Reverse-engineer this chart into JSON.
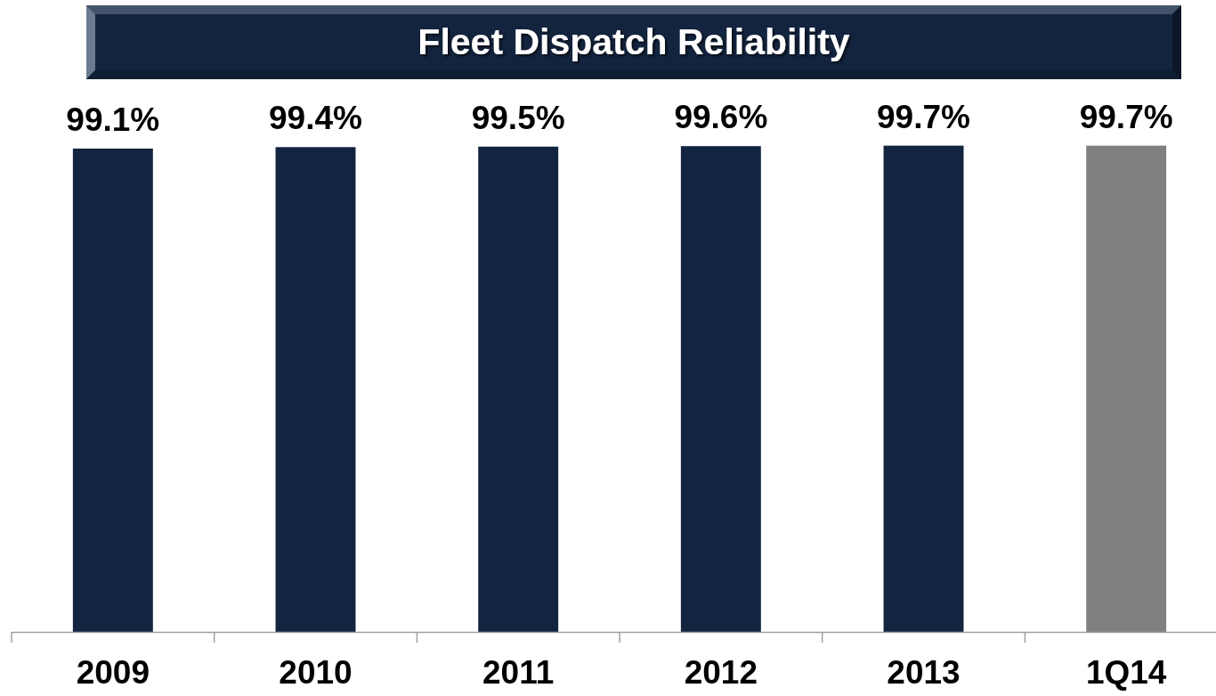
{
  "chart_data": {
    "type": "bar",
    "title": "Fleet Dispatch Reliability",
    "categories": [
      "2009",
      "2010",
      "2011",
      "2012",
      "2013",
      "1Q14"
    ],
    "values": [
      99.1,
      99.4,
      99.5,
      99.6,
      99.7,
      99.7
    ],
    "colors": [
      "#12243f",
      "#12243f",
      "#12243f",
      "#12243f",
      "#12243f",
      "#808080"
    ],
    "value_labels": [
      "99.1%",
      "99.4%",
      "99.5%",
      "99.6%",
      "99.7%",
      "99.7%"
    ],
    "ylim": [
      0,
      100
    ],
    "tick_labels": "x"
  }
}
